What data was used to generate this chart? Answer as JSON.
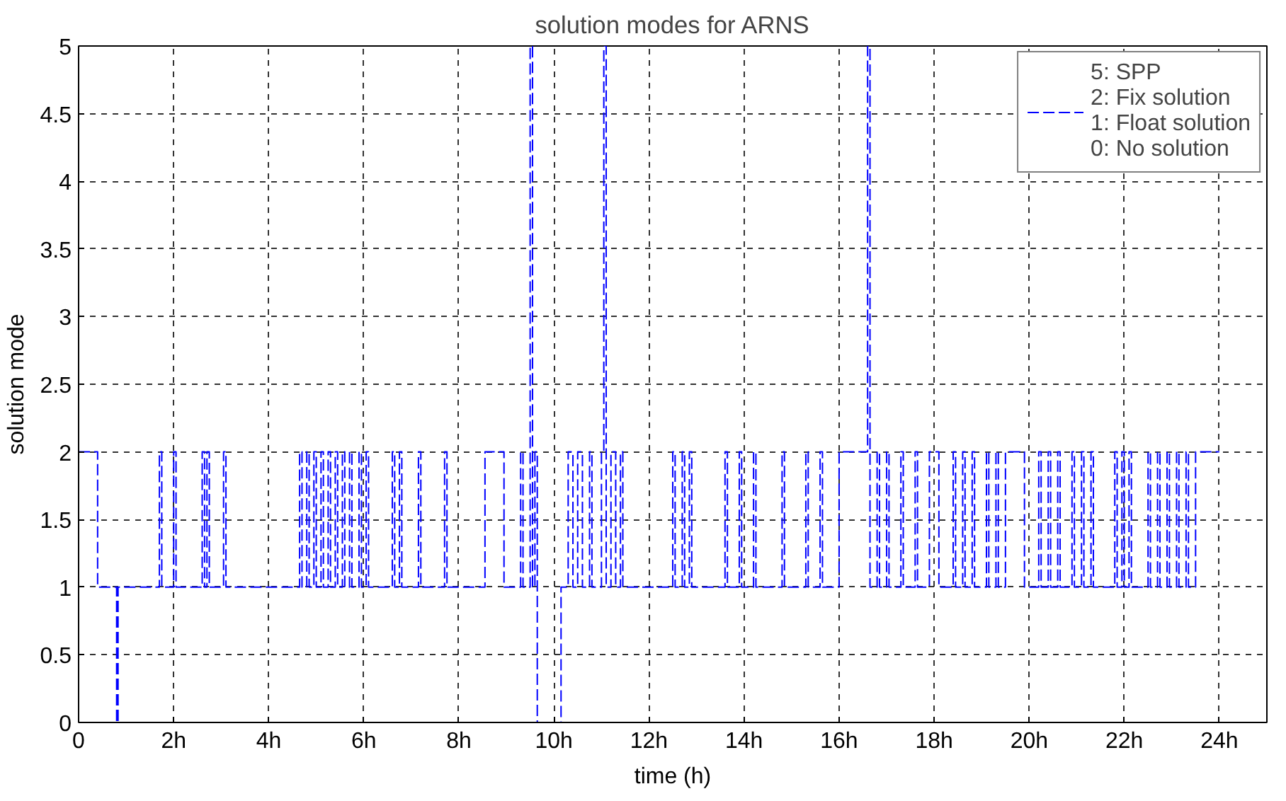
{
  "chart_data": {
    "type": "step",
    "title": "solution modes for ARNS",
    "xlabel": "time (h)",
    "ylabel": "solution mode",
    "xlim": [
      0,
      25
    ],
    "ylim": [
      0,
      5
    ],
    "xticks": [
      0,
      {
        "value": 2,
        "label": "2h"
      },
      {
        "value": 4,
        "label": "4h"
      },
      {
        "value": 6,
        "label": "6h"
      },
      {
        "value": 8,
        "label": "8h"
      },
      {
        "value": 10,
        "label": "10h"
      },
      {
        "value": 12,
        "label": "12h"
      },
      {
        "value": 14,
        "label": "14h"
      },
      {
        "value": 16,
        "label": "16h"
      },
      {
        "value": 18,
        "label": "18h"
      },
      {
        "value": 20,
        "label": "20h"
      },
      {
        "value": 22,
        "label": "22h"
      },
      {
        "value": 24,
        "label": "24h"
      }
    ],
    "yticks": [
      0,
      0.5,
      1,
      1.5,
      2,
      2.5,
      3,
      3.5,
      4,
      4.5,
      5
    ],
    "grid": true,
    "legend": "top right",
    "line_style": "dashed",
    "series": [
      {
        "name": "5: SPP\n2: Fix solution\n1: Float solution\n0: No solution",
        "color": "#0000ff",
        "x": [
          0,
          0.4,
          0.8,
          0.83,
          1.7,
          1.75,
          2.0,
          2.05,
          2.6,
          2.65,
          2.7,
          2.75,
          3.05,
          3.1,
          4.65,
          4.7,
          4.8,
          4.85,
          4.95,
          5.0,
          5.1,
          5.15,
          5.25,
          5.3,
          5.4,
          5.45,
          5.55,
          5.6,
          5.7,
          5.75,
          5.9,
          5.95,
          6.05,
          6.1,
          6.6,
          6.65,
          6.75,
          6.8,
          7.15,
          7.2,
          7.7,
          7.75,
          8.55,
          8.95,
          9.3,
          9.35,
          9.5,
          9.55,
          9.6,
          9.65,
          10.15,
          10.3,
          10.4,
          10.5,
          10.6,
          10.75,
          10.8,
          11.0,
          11.05,
          11.1,
          11.2,
          11.3,
          11.4,
          11.45,
          12.5,
          12.55,
          12.7,
          12.75,
          12.85,
          12.9,
          13.6,
          13.65,
          13.9,
          13.95,
          14.2,
          14.25,
          14.8,
          14.85,
          15.3,
          15.35,
          15.6,
          15.65,
          16.0,
          16.6,
          16.65,
          16.8,
          16.85,
          17.0,
          17.05,
          17.3,
          17.35,
          17.6,
          17.65,
          17.9,
          18.1,
          18.4,
          18.45,
          18.6,
          18.65,
          18.8,
          18.85,
          19.1,
          19.15,
          19.3,
          19.35,
          19.5,
          19.9,
          20.2,
          20.25,
          20.4,
          20.45,
          20.6,
          20.65,
          20.9,
          20.95,
          21.1,
          21.15,
          21.3,
          21.35,
          21.8,
          21.85,
          21.95,
          22.0,
          22.1,
          22.15,
          22.5,
          22.55,
          22.7,
          22.75,
          22.9,
          22.95,
          23.1,
          23.15,
          23.3,
          23.35,
          23.5,
          24.0
        ],
        "values": [
          2,
          1,
          0,
          1,
          2,
          1,
          2,
          1,
          2,
          1,
          2,
          1,
          2,
          1,
          2,
          1,
          2,
          1,
          2,
          1,
          2,
          1,
          2,
          1,
          2,
          1,
          2,
          1,
          2,
          1,
          2,
          1,
          2,
          1,
          2,
          1,
          2,
          1,
          2,
          1,
          2,
          1,
          2,
          1,
          2,
          1,
          5,
          1,
          2,
          0,
          1,
          2,
          1,
          2,
          1,
          2,
          1,
          2,
          5,
          1,
          2,
          1,
          2,
          1,
          2,
          1,
          2,
          1,
          2,
          1,
          2,
          1,
          2,
          1,
          2,
          1,
          2,
          1,
          2,
          1,
          2,
          1,
          2,
          5,
          1,
          2,
          1,
          2,
          1,
          2,
          1,
          2,
          1,
          2,
          1,
          2,
          1,
          2,
          1,
          2,
          1,
          2,
          1,
          2,
          1,
          2,
          1,
          2,
          1,
          2,
          1,
          2,
          1,
          2,
          1,
          2,
          1,
          2,
          1,
          2,
          1,
          2,
          1,
          2,
          1,
          2,
          1,
          2,
          1,
          2,
          1,
          2,
          1,
          2,
          1,
          2,
          2
        ]
      }
    ]
  }
}
